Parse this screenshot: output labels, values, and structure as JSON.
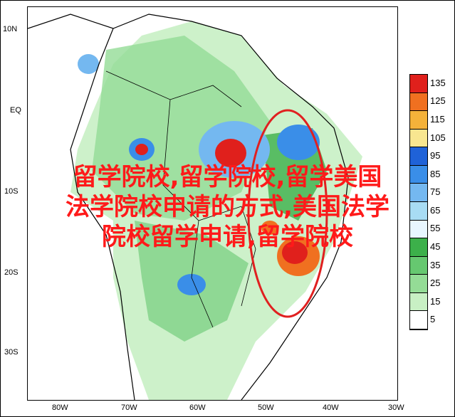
{
  "map": {
    "lat_labels": [
      "10N",
      "EQ",
      "10S",
      "20S",
      "30S"
    ],
    "lon_labels": [
      "80W",
      "70W",
      "60W",
      "50W",
      "40W",
      "30W"
    ]
  },
  "legend": {
    "values": [
      "135",
      "125",
      "115",
      "105",
      "95",
      "85",
      "75",
      "65",
      "55",
      "45",
      "35",
      "25",
      "15",
      "5"
    ],
    "colors": [
      "#e0201c",
      "#f07020",
      "#f4b23a",
      "#f8e690",
      "#1f62d8",
      "#3a8ee8",
      "#74b8f0",
      "#a8dcf4",
      "#e8f6ff",
      "#3cb04a",
      "#66c870",
      "#94dc96",
      "#c8f0c4",
      "#ffffff"
    ]
  },
  "overlay": {
    "line1": "留学院校,留学院校,留学美国",
    "line2": "法学院校申请的方式,美国法学",
    "line3": "院校留学申请,留学院校"
  },
  "highlight": {
    "color": "#e02020"
  }
}
